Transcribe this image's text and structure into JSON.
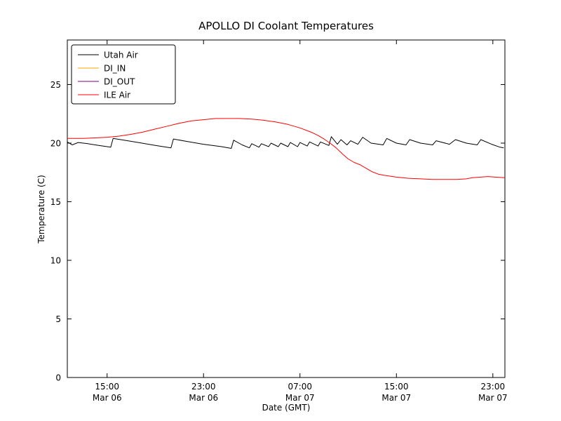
{
  "chart_data": {
    "type": "line",
    "title": "APOLLO DI Coolant Temperatures",
    "xlabel": "Date (GMT)",
    "ylabel": "Temperature (C)",
    "xlim": [
      11.7,
      48.0
    ],
    "ylim": [
      0,
      28.8
    ],
    "yticks": [
      0,
      5,
      10,
      15,
      20,
      25
    ],
    "xticks": [
      {
        "x": 15,
        "time": "15:00",
        "date": "Mar 06"
      },
      {
        "x": 23,
        "time": "23:00",
        "date": "Mar 06"
      },
      {
        "x": 31,
        "time": "07:00",
        "date": "Mar 07"
      },
      {
        "x": 39,
        "time": "15:00",
        "date": "Mar 07"
      },
      {
        "x": 47,
        "time": "23:00",
        "date": "Mar 07"
      }
    ],
    "grid": false,
    "legend_position": "top-left",
    "series": [
      {
        "name": "Utah Air",
        "color": "#000000",
        "points": [
          [
            11.7,
            20.1
          ],
          [
            12.1,
            19.85
          ],
          [
            12.6,
            20.05
          ],
          [
            13.4,
            19.95
          ],
          [
            14.3,
            19.8
          ],
          [
            15.3,
            19.65
          ],
          [
            15.5,
            20.4
          ],
          [
            16.4,
            20.25
          ],
          [
            17.6,
            20.05
          ],
          [
            19.0,
            19.8
          ],
          [
            20.3,
            19.6
          ],
          [
            20.5,
            20.35
          ],
          [
            21.6,
            20.15
          ],
          [
            23.0,
            19.9
          ],
          [
            24.5,
            19.7
          ],
          [
            25.3,
            19.55
          ],
          [
            25.5,
            20.25
          ],
          [
            26.2,
            19.85
          ],
          [
            26.8,
            19.6
          ],
          [
            27.0,
            19.95
          ],
          [
            27.6,
            19.65
          ],
          [
            27.8,
            19.95
          ],
          [
            28.4,
            19.7
          ],
          [
            28.6,
            20.0
          ],
          [
            29.2,
            19.7
          ],
          [
            29.4,
            20.0
          ],
          [
            30.0,
            19.7
          ],
          [
            30.2,
            20.05
          ],
          [
            30.8,
            19.7
          ],
          [
            31.0,
            20.05
          ],
          [
            31.6,
            19.75
          ],
          [
            31.8,
            20.1
          ],
          [
            32.5,
            19.75
          ],
          [
            32.7,
            20.1
          ],
          [
            33.4,
            19.8
          ],
          [
            33.6,
            20.55
          ],
          [
            34.1,
            19.9
          ],
          [
            34.4,
            20.3
          ],
          [
            34.9,
            19.85
          ],
          [
            35.2,
            20.2
          ],
          [
            35.8,
            19.9
          ],
          [
            36.2,
            20.5
          ],
          [
            36.9,
            20.0
          ],
          [
            37.9,
            19.85
          ],
          [
            38.2,
            20.4
          ],
          [
            39.0,
            20.0
          ],
          [
            39.8,
            19.85
          ],
          [
            40.1,
            20.3
          ],
          [
            41.0,
            20.0
          ],
          [
            42.0,
            19.85
          ],
          [
            42.3,
            20.2
          ],
          [
            43.4,
            19.9
          ],
          [
            43.9,
            20.3
          ],
          [
            44.8,
            20.0
          ],
          [
            45.7,
            19.85
          ],
          [
            46.0,
            20.3
          ],
          [
            46.9,
            19.9
          ],
          [
            47.6,
            19.65
          ],
          [
            47.9,
            19.6
          ]
        ]
      },
      {
        "name": "DI_IN",
        "color": "#ffa500",
        "points": []
      },
      {
        "name": "DI_OUT",
        "color": "#800080",
        "points": []
      },
      {
        "name": "ILE Air",
        "color": "#ff0000",
        "points": [
          [
            11.7,
            20.4
          ],
          [
            13.0,
            20.4
          ],
          [
            14.0,
            20.45
          ],
          [
            15.0,
            20.5
          ],
          [
            16.0,
            20.6
          ],
          [
            17.0,
            20.75
          ],
          [
            18.0,
            20.95
          ],
          [
            19.0,
            21.2
          ],
          [
            20.0,
            21.45
          ],
          [
            21.0,
            21.7
          ],
          [
            22.0,
            21.9
          ],
          [
            23.0,
            22.0
          ],
          [
            24.0,
            22.1
          ],
          [
            25.0,
            22.1
          ],
          [
            26.0,
            22.1
          ],
          [
            27.0,
            22.05
          ],
          [
            28.0,
            21.95
          ],
          [
            29.0,
            21.8
          ],
          [
            30.0,
            21.6
          ],
          [
            31.0,
            21.3
          ],
          [
            32.0,
            20.9
          ],
          [
            32.5,
            20.65
          ],
          [
            33.0,
            20.35
          ],
          [
            33.5,
            20.0
          ],
          [
            34.0,
            19.6
          ],
          [
            34.5,
            19.1
          ],
          [
            35.0,
            18.65
          ],
          [
            35.5,
            18.35
          ],
          [
            36.0,
            18.15
          ],
          [
            36.5,
            17.85
          ],
          [
            37.0,
            17.55
          ],
          [
            37.5,
            17.35
          ],
          [
            38.0,
            17.25
          ],
          [
            39.0,
            17.1
          ],
          [
            40.0,
            17.0
          ],
          [
            41.0,
            16.95
          ],
          [
            42.0,
            16.9
          ],
          [
            43.0,
            16.9
          ],
          [
            44.0,
            16.9
          ],
          [
            44.8,
            16.95
          ],
          [
            45.3,
            17.05
          ],
          [
            46.0,
            17.1
          ],
          [
            46.6,
            17.15
          ],
          [
            47.2,
            17.1
          ],
          [
            48.0,
            17.05
          ]
        ]
      }
    ]
  }
}
